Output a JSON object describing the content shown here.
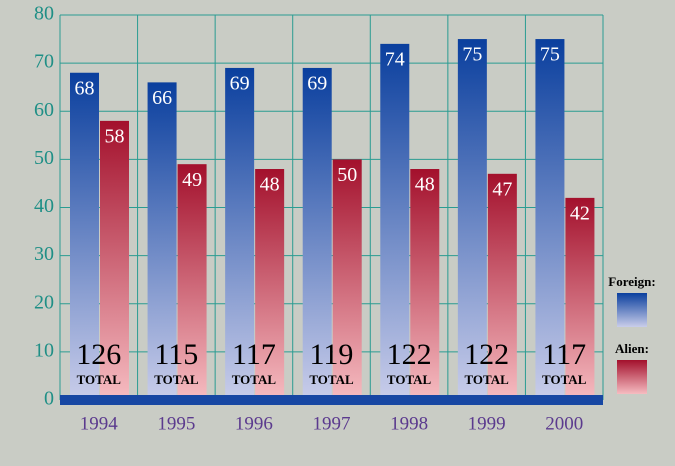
{
  "chart_data": {
    "type": "bar",
    "categories": [
      "1994",
      "1995",
      "1996",
      "1997",
      "1998",
      "1999",
      "2000"
    ],
    "series": [
      {
        "name": "Foreign:",
        "color": "#0a3f9e",
        "values": [
          68,
          66,
          69,
          69,
          74,
          75,
          75
        ]
      },
      {
        "name": "Alien:",
        "color": "#a3102c",
        "values": [
          58,
          49,
          48,
          50,
          48,
          47,
          42
        ]
      }
    ],
    "totals": [
      126,
      115,
      117,
      119,
      122,
      122,
      117
    ],
    "total_label": "TOTAL",
    "ylim": [
      0,
      80
    ],
    "yticks": [
      0,
      10,
      20,
      30,
      40,
      50,
      60,
      70,
      80
    ],
    "grid": true
  }
}
